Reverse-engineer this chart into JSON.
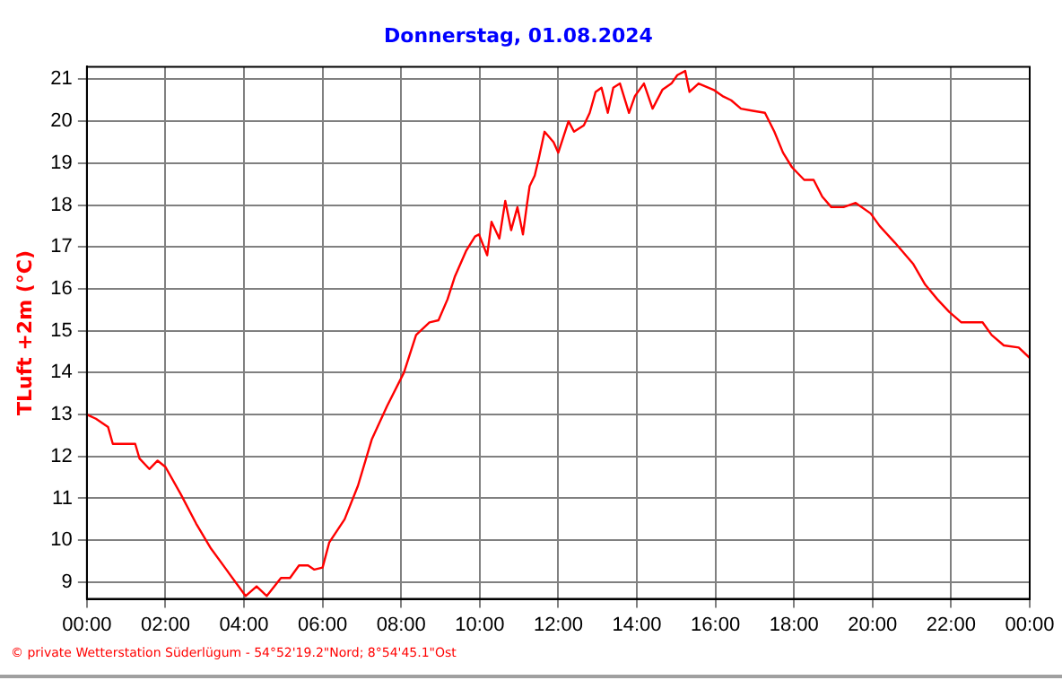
{
  "chart_data": {
    "type": "line",
    "title": "Donnerstag, 01.08.2024",
    "ylabel": "TLuft +2m (°C)",
    "annotations": [
      "© private Wetterstation Süderlügum - 54°52'19.2\"Nord; 8°54'45.1\"Ost"
    ],
    "xlim": [
      0,
      24
    ],
    "ylim": [
      8.6,
      21.3
    ],
    "xticks": [
      {
        "value": 0,
        "label": "00:00"
      },
      {
        "value": 2,
        "label": "02:00"
      },
      {
        "value": 4,
        "label": "04:00"
      },
      {
        "value": 6,
        "label": "06:00"
      },
      {
        "value": 8,
        "label": "08:00"
      },
      {
        "value": 10,
        "label": "10:00"
      },
      {
        "value": 12,
        "label": "12:00"
      },
      {
        "value": 14,
        "label": "14:00"
      },
      {
        "value": 16,
        "label": "16:00"
      },
      {
        "value": 18,
        "label": "18:00"
      },
      {
        "value": 20,
        "label": "20:00"
      },
      {
        "value": 22,
        "label": "22:00"
      },
      {
        "value": 24,
        "label": "00:00"
      }
    ],
    "yticks": [
      9,
      10,
      11,
      12,
      13,
      14,
      15,
      16,
      17,
      18,
      19,
      20,
      21
    ],
    "grid": true,
    "legend": false,
    "marker": "none",
    "line_style": "solid",
    "series": [
      {
        "color": "#ff0000",
        "x": [
          0,
          0.23,
          0.54,
          0.66,
          1.23,
          1.34,
          1.59,
          1.8,
          2.0,
          2.39,
          2.78,
          3.16,
          3.55,
          4.04,
          4.32,
          4.58,
          4.94,
          5.17,
          5.4,
          5.63,
          5.79,
          6.0,
          6.17,
          6.56,
          6.9,
          7.25,
          7.64,
          8.07,
          8.38,
          8.72,
          8.95,
          9.18,
          9.37,
          9.65,
          9.88,
          9.98,
          10.19,
          10.3,
          10.5,
          10.65,
          10.8,
          10.96,
          11.1,
          11.2,
          11.27,
          11.4,
          11.5,
          11.65,
          11.88,
          12.0,
          12.26,
          12.4,
          12.65,
          12.8,
          12.95,
          13.1,
          13.26,
          13.4,
          13.57,
          13.8,
          13.95,
          14.18,
          14.4,
          14.65,
          14.88,
          15.03,
          15.23,
          15.34,
          15.57,
          15.95,
          16.18,
          16.4,
          16.65,
          16.95,
          17.26,
          17.5,
          17.72,
          17.95,
          18.26,
          18.5,
          18.72,
          18.95,
          19.26,
          19.57,
          19.95,
          20.18,
          20.57,
          21.03,
          21.34,
          21.65,
          21.95,
          22.26,
          22.8,
          23.03,
          23.34,
          23.72,
          24
        ],
        "values": [
          13.0,
          12.9,
          12.7,
          12.3,
          12.3,
          11.95,
          11.7,
          11.9,
          11.75,
          11.1,
          10.4,
          9.8,
          9.3,
          8.67,
          8.9,
          8.67,
          9.1,
          9.1,
          9.4,
          9.4,
          9.3,
          9.35,
          9.95,
          10.5,
          11.3,
          12.4,
          13.2,
          14.0,
          14.9,
          15.2,
          15.25,
          15.75,
          16.3,
          16.9,
          17.25,
          17.3,
          16.8,
          17.6,
          17.2,
          18.1,
          17.4,
          17.95,
          17.3,
          18.0,
          18.45,
          18.7,
          19.1,
          19.75,
          19.5,
          19.25,
          20.0,
          19.75,
          19.9,
          20.2,
          20.7,
          20.8,
          20.2,
          20.8,
          20.9,
          20.2,
          20.6,
          20.9,
          20.3,
          20.75,
          20.9,
          21.1,
          21.2,
          20.7,
          20.9,
          20.75,
          20.6,
          20.5,
          20.3,
          20.25,
          20.2,
          19.75,
          19.25,
          18.9,
          18.6,
          18.6,
          18.2,
          17.95,
          17.95,
          18.05,
          17.8,
          17.5,
          17.1,
          16.6,
          16.1,
          15.75,
          15.45,
          15.2,
          15.2,
          14.9,
          14.65,
          14.6,
          14.35
        ]
      }
    ]
  }
}
